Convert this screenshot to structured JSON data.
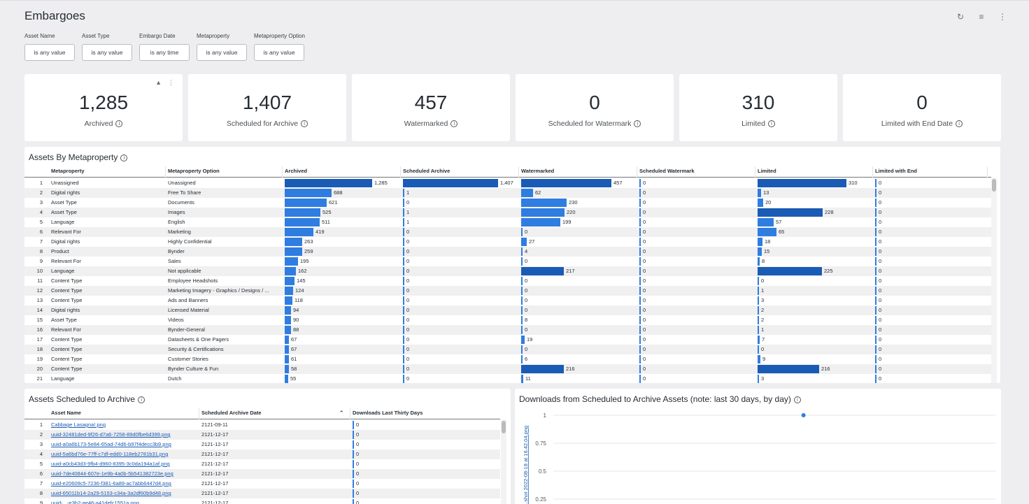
{
  "page_title": "Embargoes",
  "icons": {
    "refresh": "refresh-icon",
    "filter": "filter-icon",
    "more": "more-vertical-icon"
  },
  "filters": [
    {
      "label": "Asset Name",
      "value": "is any value"
    },
    {
      "label": "Asset Type",
      "value": "is any value"
    },
    {
      "label": "Embargo Date",
      "value": "is any time"
    },
    {
      "label": "Metaproperty",
      "value": "is any value"
    },
    {
      "label": "Metaproperty Option",
      "value": "is any value"
    }
  ],
  "tiles": [
    {
      "value": "1,285",
      "label": "Archived"
    },
    {
      "value": "1,407",
      "label": "Scheduled for Archive"
    },
    {
      "value": "457",
      "label": "Watermarked"
    },
    {
      "value": "0",
      "label": "Scheduled for Watermark"
    },
    {
      "value": "310",
      "label": "Limited"
    },
    {
      "value": "0",
      "label": "Limited with End Date"
    }
  ],
  "metaproperty_panel": {
    "title": "Assets By Metaproperty",
    "columns": [
      "Metaproperty",
      "Metaproperty Option",
      "Archived",
      "Scheduled Archive",
      "Watermarked",
      "Scheduled Watermark",
      "Limited",
      "Limited with End"
    ],
    "rows": [
      [
        "1",
        "Unassigned",
        "Unassigned",
        1285,
        1407,
        457,
        0,
        310,
        0
      ],
      [
        "2",
        "Digital rights",
        "Free To Share",
        688,
        1,
        62,
        0,
        13,
        0
      ],
      [
        "3",
        "Asset Type",
        "Documents",
        621,
        0,
        230,
        0,
        20,
        0
      ],
      [
        "4",
        "Asset Type",
        "Images",
        525,
        1,
        220,
        0,
        228,
        0
      ],
      [
        "5",
        "Language",
        "English",
        511,
        1,
        199,
        0,
        57,
        0
      ],
      [
        "6",
        "Relevant For",
        "Marketing",
        419,
        0,
        0,
        0,
        65,
        0
      ],
      [
        "7",
        "Digital rights",
        "Highly Confidential",
        263,
        0,
        27,
        0,
        18,
        0
      ],
      [
        "8",
        "Product",
        "Bynder",
        259,
        0,
        4,
        0,
        15,
        0
      ],
      [
        "9",
        "Relevant For",
        "Sales",
        195,
        0,
        0,
        0,
        8,
        0
      ],
      [
        "10",
        "Language",
        "Not applicable",
        162,
        0,
        217,
        0,
        225,
        0
      ],
      [
        "11",
        "Content Type",
        "Employee Headshots",
        145,
        0,
        0,
        0,
        0,
        0
      ],
      [
        "12",
        "Content Type",
        "Marketing Imagery - Graphics / Designs / ...",
        124,
        0,
        0,
        0,
        1,
        0
      ],
      [
        "13",
        "Content Type",
        "Ads and Banners",
        118,
        0,
        0,
        0,
        3,
        0
      ],
      [
        "14",
        "Digital rights",
        "Licensed Material",
        94,
        0,
        0,
        0,
        2,
        0
      ],
      [
        "15",
        "Asset Type",
        "Videos",
        90,
        0,
        8,
        0,
        2,
        0
      ],
      [
        "16",
        "Relevant For",
        "Bynder-General",
        88,
        0,
        0,
        0,
        1,
        0
      ],
      [
        "17",
        "Content Type",
        "Datasheets & One Pagers",
        67,
        0,
        19,
        0,
        7,
        0
      ],
      [
        "18",
        "Content Type",
        "Security & Certifications",
        67,
        0,
        0,
        0,
        0,
        0
      ],
      [
        "19",
        "Content Type",
        "Customer Stories",
        61,
        0,
        6,
        0,
        9,
        0
      ],
      [
        "20",
        "Content Type",
        "Bynder Culture & Fun",
        58,
        0,
        216,
        0,
        216,
        0
      ],
      [
        "21",
        "Language",
        "Dutch",
        55,
        0,
        11,
        0,
        3,
        0
      ]
    ]
  },
  "archive_panel": {
    "title": "Assets Scheduled to Archive",
    "columns": [
      "Asset Name",
      "Scheduled Archive Date",
      "Downloads Last Thirty Days"
    ],
    "rows": [
      [
        "1",
        "Cabbage Lasagna!.png",
        "2121-09-11",
        "0"
      ],
      [
        "2",
        "uuid-32481ded-9f26-d7a6-7258-89d0fbe6d399.png",
        "2121-12-17",
        "0"
      ],
      [
        "3",
        "uuid-a0a6b173-5e84-65ad-74d6-b97f4decc3b9.png",
        "2121-12-17",
        "0"
      ],
      [
        "4",
        "uuid-5a6bd76e-77ff-c7df-edd0-118eb2781b31.png",
        "2121-12-17",
        "0"
      ],
      [
        "5",
        "uuid-a0cb43d3-9fb4-d960-8395-3c0da194a1af.png",
        "2121-12-17",
        "0"
      ],
      [
        "6",
        "uuid-7de40844-607e-1e9b-4a0b-5b541382723e.png",
        "2121-12-17",
        "0"
      ],
      [
        "7",
        "uuid-e20609c5-7236-f381-6a89-ac7abb6447d4.png",
        "2121-12-17",
        "0"
      ],
      [
        "8",
        "uuid-65011b14-2a29-5153-c34a-3a2df60b9d48.png",
        "2121-12-17",
        "0"
      ],
      [
        "9",
        "uuid-...-e3b2-ae46-a41defc1551a.png",
        "2121-12-17",
        "0"
      ]
    ]
  },
  "downloads_panel": {
    "title": "Downloads from Scheduled to Archive Assets (note: last 30 days, by day)",
    "x_label": "...shot 2022-08-18 at 16.42.04.png"
  },
  "chart_data": {
    "type": "scatter",
    "title": "Downloads from Scheduled to Archive Assets (note: last 30 days, by day)",
    "xlabel": "",
    "ylabel": "",
    "y_ticks": [
      "1",
      "0.75",
      "0.5",
      "0.25"
    ],
    "ylim": [
      0,
      1
    ],
    "series": [
      {
        "x": [
          0.5
        ],
        "y": [
          1
        ]
      }
    ],
    "color": "#2f7de1"
  }
}
